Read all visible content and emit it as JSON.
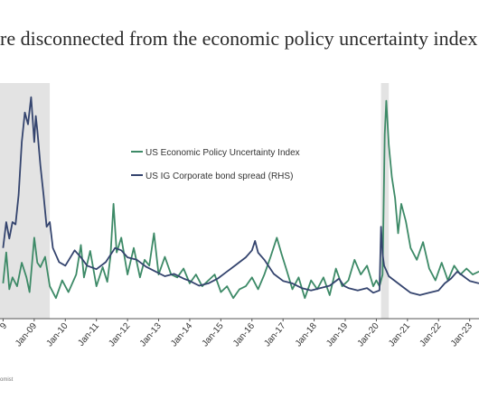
{
  "title": "re disconnected from the economic policy uncertainty index",
  "source": "omist",
  "colors": {
    "policy_uncertainty": "#3d8a67",
    "ig_spread": "#34446e",
    "shading": "#e3e3e3",
    "axis": "#555555"
  },
  "chart_data": {
    "type": "line",
    "title": "re disconnected from the economic policy uncertainty index",
    "xlabel": "",
    "ylabel": "",
    "x_ticks": [
      "9",
      "Jan-09",
      "Jan-10",
      "Jan-11",
      "Jan-12",
      "Jan-13",
      "Jan-14",
      "Jan-15",
      "Jan-16",
      "Jan-17",
      "Jan-18",
      "Jan-19",
      "Jan-20",
      "Jan-21",
      "Jan-22",
      "Jan-23"
    ],
    "x_range": [
      2007.9,
      2023.3
    ],
    "grid": false,
    "legend_position": "top-center",
    "shaded_periods": [
      [
        2007.9,
        2009.5
      ],
      [
        2020.15,
        2020.4
      ]
    ],
    "series": [
      {
        "name": "US Economic Policy Uncertainty Index",
        "x": [
          2008.0,
          2008.1,
          2008.2,
          2008.3,
          2008.45,
          2008.6,
          2008.75,
          2008.85,
          2009.0,
          2009.1,
          2009.2,
          2009.35,
          2009.5,
          2009.7,
          2009.9,
          2010.1,
          2010.35,
          2010.5,
          2010.6,
          2010.8,
          2011.0,
          2011.2,
          2011.35,
          2011.45,
          2011.55,
          2011.65,
          2011.8,
          2012.0,
          2012.2,
          2012.4,
          2012.55,
          2012.7,
          2012.85,
          2013.0,
          2013.2,
          2013.4,
          2013.6,
          2013.8,
          2014.0,
          2014.2,
          2014.4,
          2014.6,
          2014.8,
          2015.0,
          2015.2,
          2015.4,
          2015.6,
          2015.8,
          2016.0,
          2016.2,
          2016.4,
          2016.6,
          2016.8,
          2016.95,
          2017.1,
          2017.3,
          2017.5,
          2017.7,
          2017.9,
          2018.1,
          2018.3,
          2018.5,
          2018.7,
          2018.9,
          2019.1,
          2019.3,
          2019.5,
          2019.7,
          2019.9,
          2020.0,
          2020.1,
          2020.2,
          2020.27,
          2020.32,
          2020.4,
          2020.5,
          2020.6,
          2020.7,
          2020.8,
          2020.95,
          2021.1,
          2021.3,
          2021.5,
          2021.7,
          2021.9,
          2022.1,
          2022.3,
          2022.5,
          2022.7,
          2022.9,
          2023.1,
          2023.3
        ],
        "values": [
          24,
          45,
          20,
          28,
          22,
          38,
          28,
          18,
          55,
          38,
          35,
          42,
          22,
          14,
          26,
          18,
          30,
          50,
          28,
          46,
          22,
          35,
          25,
          42,
          78,
          45,
          55,
          30,
          48,
          28,
          40,
          36,
          58,
          30,
          42,
          30,
          28,
          34,
          24,
          30,
          22,
          26,
          30,
          18,
          22,
          14,
          20,
          22,
          28,
          20,
          30,
          42,
          55,
          44,
          34,
          20,
          28,
          14,
          26,
          20,
          28,
          16,
          34,
          22,
          26,
          40,
          30,
          36,
          22,
          26,
          22,
          30,
          125,
          148,
          118,
          96,
          82,
          58,
          78,
          66,
          48,
          40,
          52,
          34,
          26,
          38,
          26,
          36,
          30,
          34,
          30,
          32
        ]
      },
      {
        "name": "US IG Corporate bond spread (RHS)",
        "x": [
          2008.0,
          2008.1,
          2008.2,
          2008.3,
          2008.4,
          2008.5,
          2008.6,
          2008.7,
          2008.8,
          2008.9,
          2008.95,
          2009.0,
          2009.05,
          2009.1,
          2009.2,
          2009.3,
          2009.4,
          2009.5,
          2009.6,
          2009.8,
          2010.0,
          2010.3,
          2010.5,
          2010.7,
          2011.0,
          2011.3,
          2011.6,
          2011.8,
          2012.0,
          2012.3,
          2012.6,
          2012.9,
          2013.2,
          2013.5,
          2013.8,
          2014.0,
          2014.3,
          2014.6,
          2014.9,
          2015.2,
          2015.5,
          2015.8,
          2016.0,
          2016.1,
          2016.2,
          2016.4,
          2016.7,
          2017.0,
          2017.3,
          2017.6,
          2017.9,
          2018.2,
          2018.5,
          2018.8,
          2018.95,
          2019.1,
          2019.4,
          2019.7,
          2019.9,
          2020.1,
          2020.15,
          2020.2,
          2020.25,
          2020.3,
          2020.4,
          2020.5,
          2020.7,
          2020.9,
          2021.1,
          2021.4,
          2021.7,
          2022.0,
          2022.2,
          2022.4,
          2022.6,
          2022.8,
          2023.0,
          2023.3
        ],
        "values": [
          60,
          82,
          68,
          82,
          80,
          105,
          150,
          175,
          165,
          188,
          170,
          150,
          172,
          160,
          130,
          105,
          78,
          82,
          60,
          48,
          45,
          58,
          52,
          45,
          42,
          48,
          60,
          58,
          52,
          50,
          44,
          40,
          36,
          38,
          34,
          32,
          28,
          30,
          34,
          40,
          46,
          52,
          58,
          66,
          56,
          50,
          38,
          32,
          30,
          26,
          24,
          26,
          28,
          34,
          28,
          26,
          24,
          26,
          22,
          24,
          78,
          55,
          45,
          42,
          36,
          34,
          30,
          26,
          22,
          20,
          22,
          24,
          30,
          34,
          40,
          36,
          32,
          30
        ]
      }
    ]
  }
}
